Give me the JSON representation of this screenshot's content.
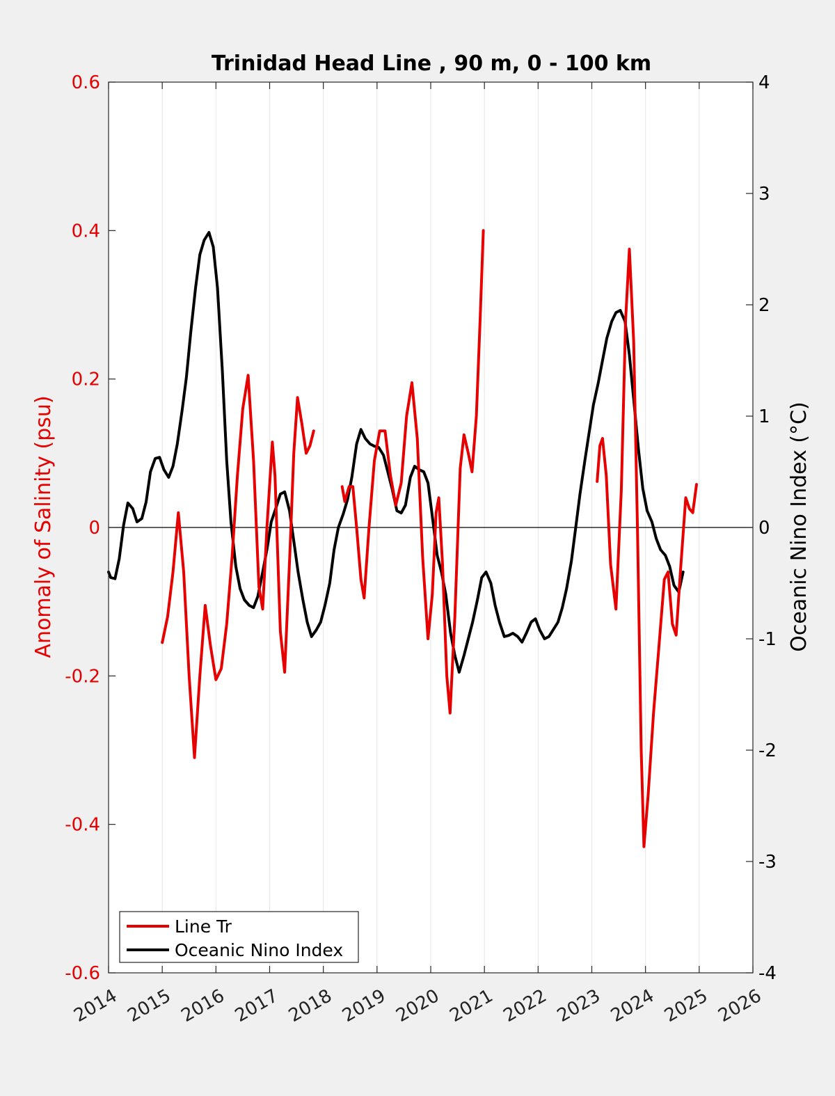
{
  "chart_data": {
    "type": "line",
    "title": "Trinidad Head Line , 90 m, 0 - 100 km",
    "ylabel_left": "Anomaly of Salinity (psu)",
    "ylabel_right": "Oceanic Nino Index (°C)",
    "xlim": [
      2014,
      2026
    ],
    "ylim_left": [
      -0.6,
      0.6
    ],
    "ylim_right": [
      -4,
      4
    ],
    "x_ticks": [
      2014,
      2015,
      2016,
      2017,
      2018,
      2019,
      2020,
      2021,
      2022,
      2023,
      2024,
      2025,
      2026
    ],
    "y_ticks_left": [
      "-0.6",
      "-0.4",
      "-0.2",
      "0",
      "0.2",
      "0.4",
      "0.6"
    ],
    "y_ticks_right": [
      "-4",
      "-3",
      "-2",
      "-1",
      "0",
      "1",
      "2",
      "3",
      "4"
    ],
    "grid": "vertical",
    "legend_location": "bottom-left",
    "colors": {
      "left_axis": "#e60000",
      "salinity": "#e60000",
      "oni": "#000000",
      "zero_line": "#000000"
    },
    "series": [
      {
        "name": "Line Tr",
        "axis": "left",
        "color": "#e60000",
        "segments": [
          [
            [
              2015.0,
              -0.155
            ],
            [
              2015.1,
              -0.12
            ],
            [
              2015.2,
              -0.06
            ],
            [
              2015.3,
              0.02
            ],
            [
              2015.4,
              -0.06
            ],
            [
              2015.5,
              -0.2
            ],
            [
              2015.6,
              -0.31
            ],
            [
              2015.7,
              -0.2
            ],
            [
              2015.8,
              -0.105
            ],
            [
              2015.9,
              -0.16
            ],
            [
              2016.0,
              -0.205
            ],
            [
              2016.1,
              -0.19
            ],
            [
              2016.2,
              -0.13
            ],
            [
              2016.3,
              -0.04
            ],
            [
              2016.4,
              0.07
            ],
            [
              2016.5,
              0.16
            ],
            [
              2016.6,
              0.205
            ],
            [
              2016.7,
              0.09
            ],
            [
              2016.8,
              -0.08
            ],
            [
              2016.87,
              -0.11
            ],
            [
              2016.95,
              0.0
            ],
            [
              2017.05,
              0.115
            ],
            [
              2017.1,
              0.07
            ],
            [
              2017.2,
              -0.14
            ],
            [
              2017.28,
              -0.195
            ],
            [
              2017.38,
              -0.03
            ],
            [
              2017.45,
              0.1
            ],
            [
              2017.52,
              0.175
            ],
            [
              2017.6,
              0.14
            ],
            [
              2017.68,
              0.1
            ],
            [
              2017.75,
              0.11
            ],
            [
              2017.82,
              0.13
            ]
          ],
          [
            [
              2018.35,
              0.055
            ],
            [
              2018.4,
              0.035
            ],
            [
              2018.48,
              0.055
            ],
            [
              2018.55,
              0.055
            ],
            [
              2018.62,
              0.0
            ],
            [
              2018.7,
              -0.07
            ],
            [
              2018.76,
              -0.095
            ],
            [
              2018.85,
              0.0
            ],
            [
              2018.95,
              0.09
            ],
            [
              2019.05,
              0.13
            ],
            [
              2019.15,
              0.13
            ],
            [
              2019.25,
              0.07
            ],
            [
              2019.35,
              0.03
            ],
            [
              2019.45,
              0.06
            ],
            [
              2019.55,
              0.15
            ],
            [
              2019.65,
              0.195
            ],
            [
              2019.75,
              0.12
            ],
            [
              2019.85,
              -0.04
            ],
            [
              2019.95,
              -0.15
            ],
            [
              2020.03,
              -0.09
            ],
            [
              2020.1,
              0.02
            ],
            [
              2020.15,
              0.04
            ],
            [
              2020.22,
              -0.05
            ],
            [
              2020.3,
              -0.2
            ],
            [
              2020.36,
              -0.25
            ],
            [
              2020.45,
              -0.12
            ],
            [
              2020.55,
              0.08
            ],
            [
              2020.62,
              0.125
            ],
            [
              2020.7,
              0.1
            ],
            [
              2020.77,
              0.075
            ],
            [
              2020.85,
              0.15
            ],
            [
              2020.92,
              0.28
            ],
            [
              2020.98,
              0.4
            ]
          ],
          [
            [
              2023.1,
              0.062
            ],
            [
              2023.15,
              0.11
            ],
            [
              2023.2,
              0.12
            ],
            [
              2023.27,
              0.07
            ],
            [
              2023.35,
              -0.05
            ],
            [
              2023.45,
              -0.11
            ],
            [
              2023.55,
              0.05
            ],
            [
              2023.63,
              0.28
            ],
            [
              2023.7,
              0.375
            ],
            [
              2023.78,
              0.25
            ],
            [
              2023.85,
              0.0
            ],
            [
              2023.92,
              -0.3
            ],
            [
              2023.97,
              -0.43
            ],
            [
              2024.05,
              -0.36
            ],
            [
              2024.15,
              -0.25
            ],
            [
              2024.25,
              -0.16
            ],
            [
              2024.35,
              -0.07
            ],
            [
              2024.42,
              -0.06
            ],
            [
              2024.5,
              -0.13
            ],
            [
              2024.57,
              -0.145
            ],
            [
              2024.65,
              -0.06
            ],
            [
              2024.75,
              0.04
            ],
            [
              2024.82,
              0.025
            ],
            [
              2024.88,
              0.02
            ],
            [
              2024.95,
              0.058
            ]
          ]
        ]
      },
      {
        "name": "Oceanic Nino Index",
        "axis": "right",
        "color": "#000000",
        "segments": [
          [
            [
              2014.0,
              -0.4
            ],
            [
              2014.04,
              -0.45
            ],
            [
              2014.12,
              -0.46
            ],
            [
              2014.2,
              -0.28
            ],
            [
              2014.28,
              0.02
            ],
            [
              2014.36,
              0.22
            ],
            [
              2014.45,
              0.17
            ],
            [
              2014.53,
              0.05
            ],
            [
              2014.62,
              0.08
            ],
            [
              2014.7,
              0.23
            ],
            [
              2014.78,
              0.5
            ],
            [
              2014.87,
              0.62
            ],
            [
              2014.95,
              0.63
            ],
            [
              2015.03,
              0.52
            ],
            [
              2015.12,
              0.45
            ],
            [
              2015.2,
              0.55
            ],
            [
              2015.28,
              0.75
            ],
            [
              2015.37,
              1.05
            ],
            [
              2015.45,
              1.35
            ],
            [
              2015.53,
              1.75
            ],
            [
              2015.62,
              2.15
            ],
            [
              2015.7,
              2.45
            ],
            [
              2015.78,
              2.58
            ],
            [
              2015.87,
              2.65
            ],
            [
              2015.95,
              2.52
            ],
            [
              2016.03,
              2.15
            ],
            [
              2016.12,
              1.4
            ],
            [
              2016.2,
              0.6
            ],
            [
              2016.28,
              0.05
            ],
            [
              2016.37,
              -0.35
            ],
            [
              2016.45,
              -0.55
            ],
            [
              2016.53,
              -0.65
            ],
            [
              2016.62,
              -0.7
            ],
            [
              2016.7,
              -0.72
            ],
            [
              2016.78,
              -0.62
            ],
            [
              2016.87,
              -0.4
            ],
            [
              2016.95,
              -0.2
            ],
            [
              2017.03,
              0.05
            ],
            [
              2017.12,
              0.18
            ],
            [
              2017.2,
              0.3
            ],
            [
              2017.28,
              0.32
            ],
            [
              2017.37,
              0.15
            ],
            [
              2017.45,
              -0.12
            ],
            [
              2017.53,
              -0.4
            ],
            [
              2017.62,
              -0.65
            ],
            [
              2017.7,
              -0.85
            ],
            [
              2017.78,
              -0.98
            ],
            [
              2017.87,
              -0.92
            ],
            [
              2017.95,
              -0.85
            ],
            [
              2018.03,
              -0.7
            ],
            [
              2018.12,
              -0.5
            ],
            [
              2018.2,
              -0.2
            ],
            [
              2018.28,
              0.0
            ],
            [
              2018.37,
              0.12
            ],
            [
              2018.45,
              0.25
            ],
            [
              2018.53,
              0.45
            ],
            [
              2018.62,
              0.75
            ],
            [
              2018.7,
              0.88
            ],
            [
              2018.78,
              0.8
            ],
            [
              2018.87,
              0.75
            ],
            [
              2018.95,
              0.73
            ],
            [
              2019.03,
              0.72
            ],
            [
              2019.12,
              0.65
            ],
            [
              2019.2,
              0.5
            ],
            [
              2019.28,
              0.35
            ],
            [
              2019.37,
              0.15
            ],
            [
              2019.45,
              0.13
            ],
            [
              2019.53,
              0.2
            ],
            [
              2019.62,
              0.45
            ],
            [
              2019.7,
              0.55
            ],
            [
              2019.78,
              0.52
            ],
            [
              2019.87,
              0.5
            ],
            [
              2019.95,
              0.4
            ],
            [
              2020.03,
              0.1
            ],
            [
              2020.12,
              -0.25
            ],
            [
              2020.2,
              -0.4
            ],
            [
              2020.28,
              -0.6
            ],
            [
              2020.37,
              -0.95
            ],
            [
              2020.45,
              -1.15
            ],
            [
              2020.53,
              -1.3
            ],
            [
              2020.62,
              -1.15
            ],
            [
              2020.7,
              -1.0
            ],
            [
              2020.78,
              -0.85
            ],
            [
              2020.87,
              -0.65
            ],
            [
              2020.95,
              -0.45
            ],
            [
              2021.03,
              -0.4
            ],
            [
              2021.12,
              -0.5
            ],
            [
              2021.2,
              -0.7
            ],
            [
              2021.28,
              -0.85
            ],
            [
              2021.37,
              -0.98
            ],
            [
              2021.45,
              -0.97
            ],
            [
              2021.53,
              -0.95
            ],
            [
              2021.62,
              -0.98
            ],
            [
              2021.7,
              -1.03
            ],
            [
              2021.78,
              -0.95
            ],
            [
              2021.87,
              -0.85
            ],
            [
              2021.95,
              -0.82
            ],
            [
              2022.03,
              -0.92
            ],
            [
              2022.12,
              -1.0
            ],
            [
              2022.2,
              -0.98
            ],
            [
              2022.28,
              -0.92
            ],
            [
              2022.37,
              -0.85
            ],
            [
              2022.45,
              -0.72
            ],
            [
              2022.53,
              -0.55
            ],
            [
              2022.62,
              -0.3
            ],
            [
              2022.7,
              0.0
            ],
            [
              2022.78,
              0.3
            ],
            [
              2022.87,
              0.6
            ],
            [
              2022.95,
              0.85
            ],
            [
              2023.03,
              1.1
            ],
            [
              2023.12,
              1.3
            ],
            [
              2023.2,
              1.5
            ],
            [
              2023.28,
              1.7
            ],
            [
              2023.37,
              1.85
            ],
            [
              2023.45,
              1.93
            ],
            [
              2023.53,
              1.95
            ],
            [
              2023.62,
              1.85
            ],
            [
              2023.7,
              1.55
            ],
            [
              2023.78,
              1.15
            ],
            [
              2023.87,
              0.7
            ],
            [
              2023.95,
              0.35
            ],
            [
              2024.03,
              0.15
            ],
            [
              2024.12,
              0.05
            ],
            [
              2024.2,
              -0.1
            ],
            [
              2024.28,
              -0.2
            ],
            [
              2024.37,
              -0.25
            ],
            [
              2024.45,
              -0.35
            ],
            [
              2024.53,
              -0.52
            ],
            [
              2024.62,
              -0.58
            ],
            [
              2024.7,
              -0.4
            ]
          ]
        ]
      }
    ]
  }
}
